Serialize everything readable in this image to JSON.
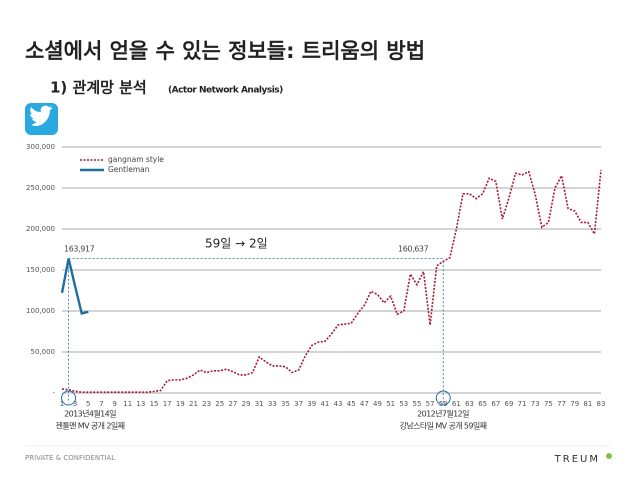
{
  "slide": {
    "title": "소셜에서 얻을 수 있는 정보들: 트리움의 방법",
    "subtitle": "1) 관계망 분석",
    "subtitle_note": "(Actor Network Analysis)",
    "footer": "PRIVATE & CONFIDENTIAL",
    "logo": "TREUM"
  },
  "chart_data": {
    "type": "line",
    "x": [
      1,
      2,
      3,
      4,
      5,
      6,
      7,
      8,
      9,
      10,
      11,
      12,
      13,
      14,
      15,
      16,
      17,
      18,
      19,
      20,
      21,
      22,
      23,
      24,
      25,
      26,
      27,
      28,
      29,
      30,
      31,
      32,
      33,
      34,
      35,
      36,
      37,
      38,
      39,
      40,
      41,
      42,
      43,
      44,
      45,
      46,
      47,
      48,
      49,
      50,
      51,
      52,
      53,
      54,
      55,
      56,
      57,
      58,
      59,
      60,
      61,
      62,
      63,
      64,
      65,
      66,
      67,
      68,
      69,
      70,
      71,
      72,
      73,
      74,
      75,
      76,
      77,
      78,
      79,
      80,
      81,
      82,
      83
    ],
    "xlim": [
      1,
      83
    ],
    "xticks": [
      1,
      3,
      5,
      7,
      9,
      11,
      13,
      15,
      17,
      19,
      21,
      23,
      25,
      27,
      29,
      31,
      33,
      35,
      37,
      39,
      41,
      43,
      45,
      47,
      49,
      51,
      53,
      55,
      57,
      59,
      61,
      63,
      65,
      67,
      69,
      71,
      73,
      75,
      77,
      79,
      81,
      83
    ],
    "ylim": [
      0,
      300000
    ],
    "yticks": [
      {
        "value": 0,
        "label": "-"
      },
      {
        "value": 50000,
        "label": "50,000"
      },
      {
        "value": 100000,
        "label": "100,000"
      },
      {
        "value": 150000,
        "label": "150,000"
      },
      {
        "value": 200000,
        "label": "200,000"
      },
      {
        "value": 250000,
        "label": "250,000"
      },
      {
        "value": 300000,
        "label": "300,000"
      }
    ],
    "grid": true,
    "legend": "upper left",
    "series": [
      {
        "name": "gangnam style",
        "color": "#a8192e",
        "dash": true,
        "values": [
          5000,
          4000,
          2000,
          1000,
          1000,
          1000,
          1000,
          1000,
          1000,
          1000,
          1000,
          1000,
          1000,
          1000,
          2000,
          3000,
          15000,
          16000,
          16000,
          18000,
          22000,
          28000,
          25000,
          27000,
          27000,
          29000,
          26000,
          22000,
          22000,
          25000,
          44000,
          38000,
          33000,
          33000,
          32000,
          25000,
          28000,
          45000,
          58000,
          62000,
          63000,
          72000,
          83000,
          84000,
          85000,
          97000,
          107000,
          124000,
          120000,
          110000,
          118000,
          96000,
          100000,
          145000,
          132000,
          148000,
          83000,
          155000,
          160637,
          165000,
          200000,
          243000,
          243000,
          237000,
          243000,
          262000,
          258000,
          212000,
          238000,
          268000,
          266000,
          270000,
          242000,
          202000,
          208000,
          250000,
          265000,
          225000,
          222000,
          208000,
          208000,
          194000,
          272000
        ]
      },
      {
        "name": "Gentleman",
        "color": "#1f6f9e",
        "dash": false,
        "x": [
          1,
          2,
          3,
          4,
          5
        ],
        "values": [
          122000,
          163917,
          130000,
          97000,
          99000
        ]
      }
    ],
    "annotations": [
      "163,917",
      "160,637",
      "59일 → 2일",
      "2013년4월14일",
      "젠틀맨 MV 공개 2일째",
      "2012년7월12일",
      "강남스타일 MV 공개 59일째"
    ]
  }
}
